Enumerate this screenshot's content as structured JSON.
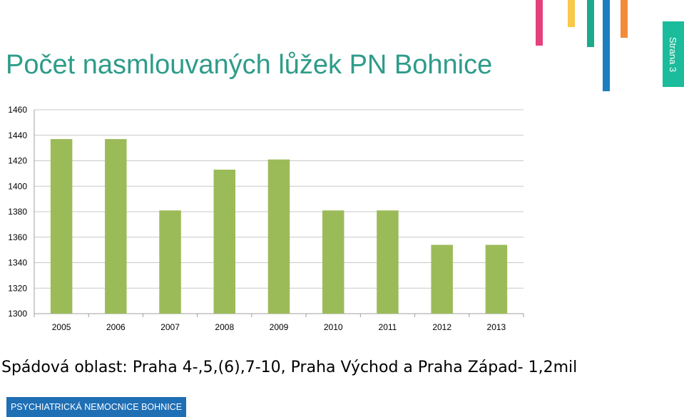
{
  "header": {
    "title": "Počet nasmlouvaných lůžek PN Bohnice"
  },
  "page_tab": {
    "label": "Strana 3"
  },
  "decor": {
    "strip_colors": [
      "#e4417c",
      "#f8c84a",
      "#1bab8c",
      "#1c7fc0",
      "#f28c38"
    ]
  },
  "chart_data": {
    "type": "bar",
    "categories": [
      "2005",
      "2006",
      "2007",
      "2008",
      "2009",
      "2010",
      "2011",
      "2012",
      "2013"
    ],
    "values": [
      1437,
      1437,
      1381,
      1413,
      1421,
      1381,
      1381,
      1354,
      1354
    ],
    "ylim": [
      1300,
      1460
    ],
    "yticks": [
      1300,
      1320,
      1340,
      1360,
      1380,
      1400,
      1420,
      1440,
      1460
    ],
    "grid": true,
    "bar_color": "#9bbb59",
    "title": "",
    "xlabel": "",
    "ylabel": ""
  },
  "caption": "Spádová oblast: Praha 4-,5,(6),7-10, Praha Východ a Praha Západ- 1,2mil",
  "footer": {
    "label": "PSYCHIATRICKÁ NEMOCNICE BOHNICE"
  }
}
